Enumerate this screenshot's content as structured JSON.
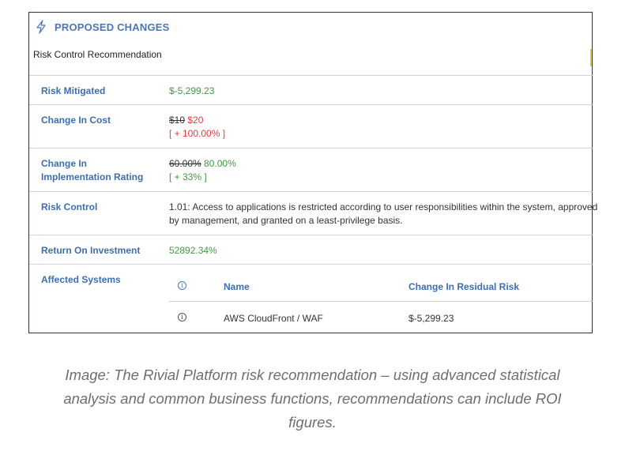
{
  "card": {
    "title": "PROPOSED CHANGES",
    "subtitle": "Risk Control Recommendation",
    "accent_color": "#4a78b5",
    "header_icon": "lightning-bolt-icon"
  },
  "rows": {
    "risk_mitigated": {
      "label": "Risk Mitigated",
      "value": "$-5,299.23"
    },
    "change_in_cost": {
      "label": "Change In Cost",
      "old_value": "$10",
      "new_value": "$20",
      "delta": "[ + 100.00% ]"
    },
    "change_in_impl_rating": {
      "label_line1": "Change In",
      "label_line2": "Implementation Rating",
      "old_value": "60.00%",
      "new_value": "80.00%",
      "delta": "[ + 33% ]"
    },
    "risk_control": {
      "label": "Risk Control",
      "line1": "1.01: Access to applications is restricted according to user responsibilities within the system, approved",
      "line2": "by management, and granted on a least-privilege basis."
    },
    "roi": {
      "label": "Return On Investment",
      "value": "52892.34%"
    },
    "affected_systems": {
      "label": "Affected Systems",
      "columns": {
        "info_icon": "info-icon",
        "name": "Name",
        "change": "Change In Residual Risk"
      },
      "rows": [
        {
          "name": "AWS CloudFront / WAF",
          "change": "$-5,299.23"
        }
      ]
    }
  },
  "caption": {
    "line1": "Image: The Rivial Platform risk recommendation – using advanced statistical",
    "line2": "analysis and common business functions, recommendations can include ROI",
    "line3": "figures."
  },
  "colors": {
    "label_blue": "#3d6faf",
    "positive_green": "#3f9a3f",
    "negative_red": "#e23b3b"
  }
}
